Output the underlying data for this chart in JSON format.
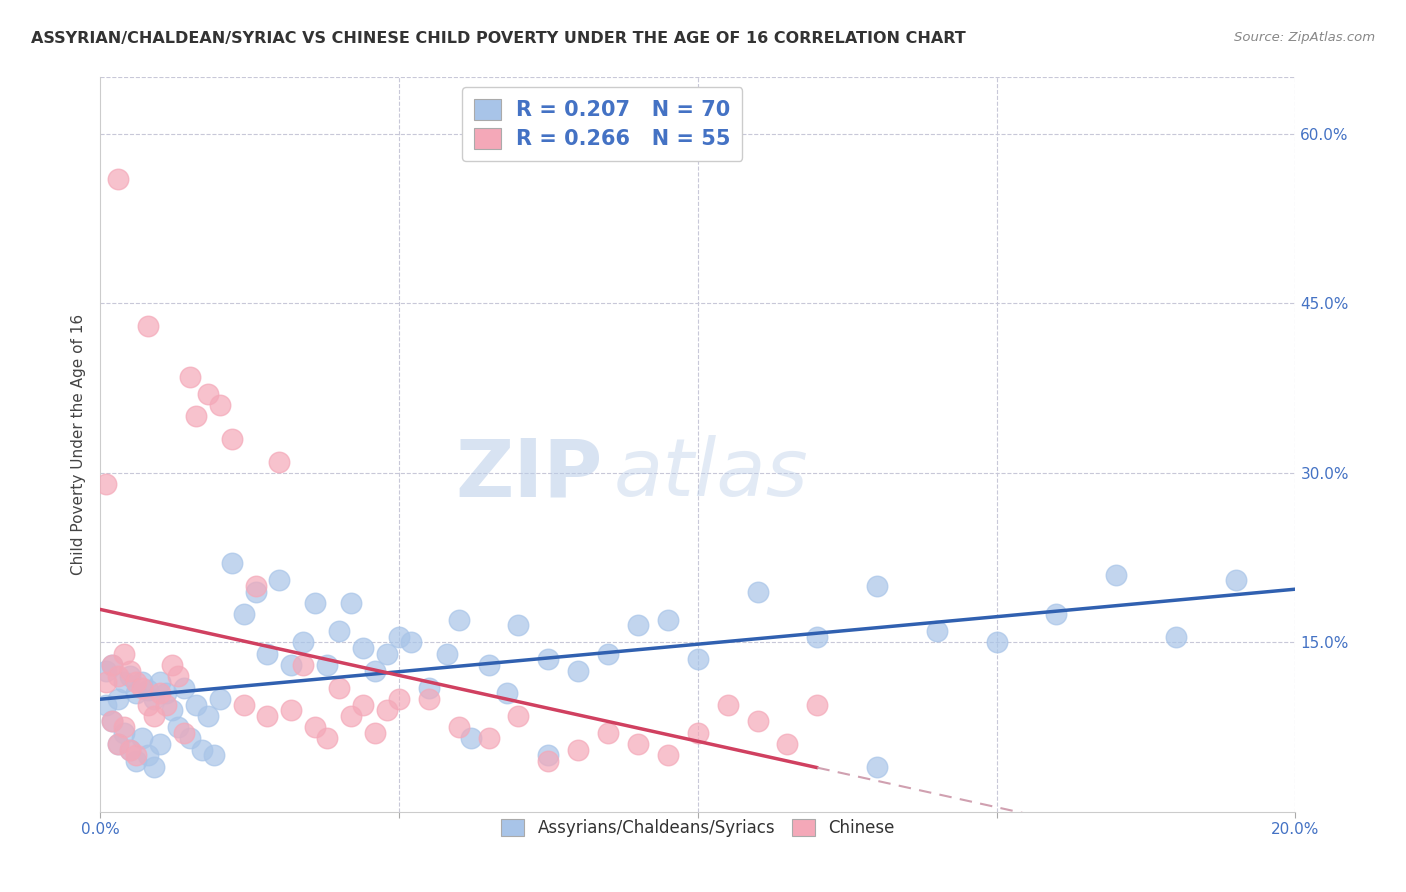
{
  "title": "ASSYRIAN/CHALDEAN/SYRIAC VS CHINESE CHILD POVERTY UNDER THE AGE OF 16 CORRELATION CHART",
  "source": "Source: ZipAtlas.com",
  "ylabel": "Child Poverty Under the Age of 16",
  "xlim": [
    0.0,
    0.2
  ],
  "ylim": [
    0.0,
    0.65
  ],
  "y_tick_vals_right": [
    0.15,
    0.3,
    0.45,
    0.6
  ],
  "blue_R": 0.207,
  "blue_N": 70,
  "pink_R": 0.266,
  "pink_N": 55,
  "blue_color": "#a8c4e8",
  "pink_color": "#f4a8b8",
  "blue_line_color": "#3060b0",
  "pink_line_color": "#d04060",
  "pink_dash_color": "#d0a0b0",
  "legend_label_blue": "Assyrians/Chaldeans/Syriacs",
  "legend_label_pink": "Chinese",
  "watermark_zip": "ZIP",
  "watermark_atlas": "atlas",
  "grid_color": "#c8c8d8",
  "background_color": "#ffffff",
  "blue_scatter_x": [
    0.001,
    0.001,
    0.002,
    0.002,
    0.003,
    0.003,
    0.004,
    0.004,
    0.005,
    0.005,
    0.006,
    0.006,
    0.007,
    0.007,
    0.008,
    0.008,
    0.009,
    0.009,
    0.01,
    0.01,
    0.011,
    0.012,
    0.013,
    0.014,
    0.015,
    0.016,
    0.017,
    0.018,
    0.019,
    0.02,
    0.022,
    0.024,
    0.026,
    0.028,
    0.03,
    0.032,
    0.034,
    0.036,
    0.038,
    0.04,
    0.042,
    0.044,
    0.046,
    0.048,
    0.05,
    0.052,
    0.055,
    0.058,
    0.06,
    0.062,
    0.065,
    0.068,
    0.07,
    0.075,
    0.08,
    0.085,
    0.09,
    0.095,
    0.1,
    0.11,
    0.12,
    0.13,
    0.14,
    0.15,
    0.16,
    0.17,
    0.18,
    0.19,
    0.13,
    0.075
  ],
  "blue_scatter_y": [
    0.125,
    0.095,
    0.13,
    0.08,
    0.1,
    0.06,
    0.115,
    0.07,
    0.12,
    0.055,
    0.105,
    0.045,
    0.115,
    0.065,
    0.108,
    0.05,
    0.1,
    0.04,
    0.115,
    0.06,
    0.105,
    0.09,
    0.075,
    0.11,
    0.065,
    0.095,
    0.055,
    0.085,
    0.05,
    0.1,
    0.22,
    0.175,
    0.195,
    0.14,
    0.205,
    0.13,
    0.15,
    0.185,
    0.13,
    0.16,
    0.185,
    0.145,
    0.125,
    0.14,
    0.155,
    0.15,
    0.11,
    0.14,
    0.17,
    0.065,
    0.13,
    0.105,
    0.165,
    0.135,
    0.125,
    0.14,
    0.165,
    0.17,
    0.135,
    0.195,
    0.155,
    0.2,
    0.16,
    0.15,
    0.175,
    0.21,
    0.155,
    0.205,
    0.04,
    0.05
  ],
  "pink_scatter_x": [
    0.001,
    0.001,
    0.002,
    0.002,
    0.003,
    0.003,
    0.004,
    0.004,
    0.005,
    0.005,
    0.006,
    0.006,
    0.007,
    0.008,
    0.009,
    0.01,
    0.011,
    0.012,
    0.013,
    0.014,
    0.015,
    0.016,
    0.018,
    0.02,
    0.022,
    0.024,
    0.026,
    0.028,
    0.03,
    0.032,
    0.034,
    0.036,
    0.038,
    0.04,
    0.042,
    0.044,
    0.046,
    0.048,
    0.05,
    0.055,
    0.06,
    0.065,
    0.07,
    0.075,
    0.08,
    0.085,
    0.09,
    0.095,
    0.1,
    0.105,
    0.11,
    0.115,
    0.12,
    0.003,
    0.008
  ],
  "pink_scatter_y": [
    0.29,
    0.115,
    0.13,
    0.08,
    0.12,
    0.06,
    0.14,
    0.075,
    0.125,
    0.055,
    0.115,
    0.05,
    0.11,
    0.095,
    0.085,
    0.105,
    0.095,
    0.13,
    0.12,
    0.07,
    0.385,
    0.35,
    0.37,
    0.36,
    0.33,
    0.095,
    0.2,
    0.085,
    0.31,
    0.09,
    0.13,
    0.075,
    0.065,
    0.11,
    0.085,
    0.095,
    0.07,
    0.09,
    0.1,
    0.1,
    0.075,
    0.065,
    0.085,
    0.045,
    0.055,
    0.07,
    0.06,
    0.05,
    0.07,
    0.095,
    0.08,
    0.06,
    0.095,
    0.56,
    0.43
  ]
}
